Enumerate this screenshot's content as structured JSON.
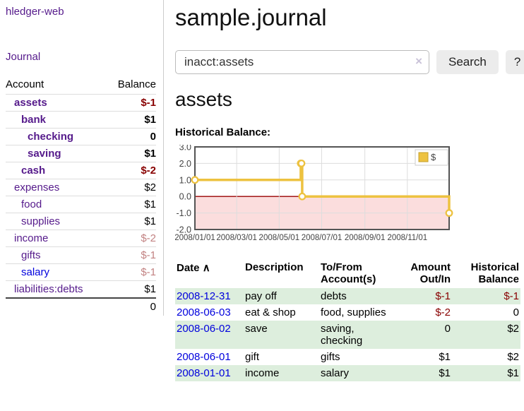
{
  "colors": {
    "accent_purple": "#551A8B",
    "link_blue": "#0000dd",
    "negative": "#880000",
    "negative_dim": "#c28282",
    "row_stripe_green": "#ddeedd",
    "series_gold": "#EDC240",
    "negative_region_pink": "#fbdddd",
    "zero_line_red": "#990000"
  },
  "sidebar": {
    "brand": "hledger-web",
    "nav": "Journal",
    "account_header": "Account",
    "balance_header": "Balance",
    "accounts": [
      {
        "name": "assets",
        "depth": 0,
        "bold": true,
        "link": "purple",
        "balance": "$-1",
        "balance_class": "neg"
      },
      {
        "name": "bank",
        "depth": 1,
        "bold": true,
        "link": "purple",
        "balance": "$1",
        "balance_class": ""
      },
      {
        "name": "checking",
        "depth": 2,
        "bold": true,
        "link": "purple",
        "balance": "0",
        "balance_class": ""
      },
      {
        "name": "saving",
        "depth": 2,
        "bold": true,
        "link": "purple",
        "balance": "$1",
        "balance_class": ""
      },
      {
        "name": "cash",
        "depth": 1,
        "bold": true,
        "link": "purple",
        "balance": "$-2",
        "balance_class": "neg"
      },
      {
        "name": "expenses",
        "depth": 0,
        "bold": false,
        "link": "purple",
        "balance": "$2",
        "balance_class": ""
      },
      {
        "name": "food",
        "depth": 1,
        "bold": false,
        "link": "purple",
        "balance": "$1",
        "balance_class": ""
      },
      {
        "name": "supplies",
        "depth": 1,
        "bold": false,
        "link": "purple",
        "balance": "$1",
        "balance_class": ""
      },
      {
        "name": "income",
        "depth": 0,
        "bold": false,
        "link": "purple",
        "balance": "$-2",
        "balance_class": "neg-dim"
      },
      {
        "name": "gifts",
        "depth": 1,
        "bold": false,
        "link": "purple",
        "balance": "$-1",
        "balance_class": "neg-dim"
      },
      {
        "name": "salary",
        "depth": 1,
        "bold": false,
        "link": "blue",
        "balance": "$-1",
        "balance_class": "neg-dim"
      },
      {
        "name": "liabilities:debts",
        "depth": 0,
        "bold": false,
        "link": "purple",
        "balance": "$1",
        "balance_class": ""
      }
    ],
    "total": "0"
  },
  "main": {
    "title": "sample.journal",
    "search": {
      "value": "inacct:assets",
      "clear_icon": "×",
      "search_button": "Search",
      "help_button": "?"
    },
    "account_heading": "assets",
    "section_label": "Historical Balance:"
  },
  "chart_data": {
    "type": "line",
    "style": "step",
    "title": "Historical Balance:",
    "series": [
      {
        "name": "$",
        "color": "#EDC240",
        "points": [
          [
            "2008-01-01",
            1
          ],
          [
            "2008-06-01",
            2
          ],
          [
            "2008-06-02",
            2
          ],
          [
            "2008-06-03",
            0
          ],
          [
            "2008-12-31",
            -1
          ]
        ]
      }
    ],
    "x_ticks": [
      "2008/01/01",
      "2008/03/01",
      "2008/05/01",
      "2008/07/01",
      "2008/09/01",
      "2008/11/01"
    ],
    "y_ticks": [
      3.0,
      2.0,
      1.0,
      0.0,
      -1.0,
      -2.0
    ],
    "xlim": [
      "2008-01-01",
      "2008-12-31"
    ],
    "ylim": [
      -2,
      3
    ],
    "grid": true,
    "legend": {
      "label": "$",
      "position": "top-right"
    },
    "negative_region_color": "#fbdddd",
    "zero_line_color": "#990000"
  },
  "register": {
    "columns": [
      {
        "label": "Date",
        "sort_icon": "∧",
        "align": "left"
      },
      {
        "label": "Description",
        "align": "left"
      },
      {
        "label": "To/From Account(s)",
        "align": "left"
      },
      {
        "label": "Amount Out/In",
        "align": "right"
      },
      {
        "label": "Historical Balance",
        "align": "right"
      }
    ],
    "rows": [
      {
        "date": "2008-12-31",
        "description": "pay off",
        "accounts": "debts",
        "amount": "$-1",
        "amount_class": "neg",
        "balance": "$-1",
        "balance_class": "neg"
      },
      {
        "date": "2008-06-03",
        "description": "eat & shop",
        "accounts": "food, supplies",
        "amount": "$-2",
        "amount_class": "neg",
        "balance": "0",
        "balance_class": ""
      },
      {
        "date": "2008-06-02",
        "description": "save",
        "accounts": "saving, checking",
        "amount": "0",
        "amount_class": "",
        "balance": "$2",
        "balance_class": ""
      },
      {
        "date": "2008-06-01",
        "description": "gift",
        "accounts": "gifts",
        "amount": "$1",
        "amount_class": "",
        "balance": "$2",
        "balance_class": ""
      },
      {
        "date": "2008-01-01",
        "description": "income",
        "accounts": "salary",
        "amount": "$1",
        "amount_class": "",
        "balance": "$1",
        "balance_class": ""
      }
    ]
  }
}
